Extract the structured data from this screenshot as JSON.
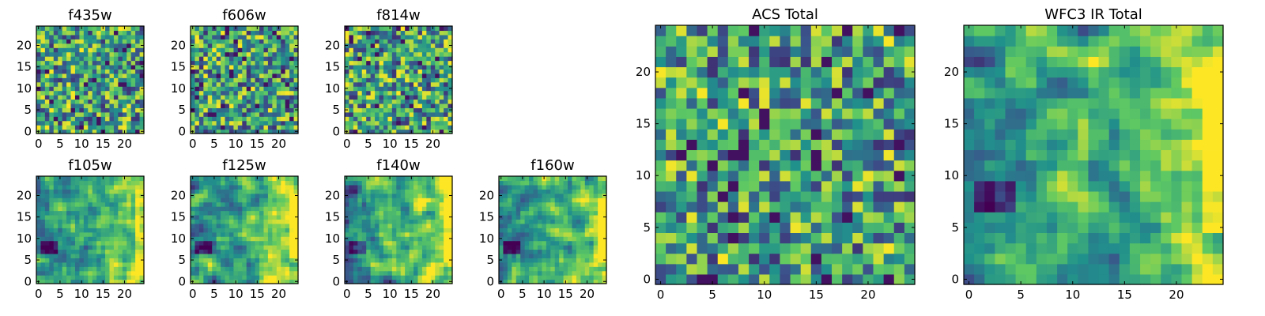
{
  "figure": {
    "colormap": "viridis",
    "colormap_stops": [
      "#440154",
      "#3b528b",
      "#21918c",
      "#5ec962",
      "#fde725"
    ]
  },
  "chart_data": [
    {
      "type": "heatmap",
      "title": "f435w",
      "grid_size": 25,
      "xlim": [
        0,
        24
      ],
      "ylim": [
        0,
        24
      ],
      "xticks": [
        0,
        5,
        10,
        15,
        20
      ],
      "yticks": [
        0,
        5,
        10,
        15,
        20
      ],
      "texture": "noisy",
      "values": []
    },
    {
      "type": "heatmap",
      "title": "f606w",
      "grid_size": 25,
      "xlim": [
        0,
        24
      ],
      "ylim": [
        0,
        24
      ],
      "xticks": [
        0,
        5,
        10,
        15,
        20
      ],
      "yticks": [
        0,
        5,
        10,
        15,
        20
      ],
      "texture": "noisy",
      "values": []
    },
    {
      "type": "heatmap",
      "title": "f814w",
      "grid_size": 25,
      "xlim": [
        0,
        24
      ],
      "ylim": [
        0,
        24
      ],
      "xticks": [
        0,
        5,
        10,
        15,
        20
      ],
      "yticks": [
        0,
        5,
        10,
        15,
        20
      ],
      "texture": "noisy",
      "values": []
    },
    {
      "type": "heatmap",
      "title": "f105w",
      "grid_size": 25,
      "xlim": [
        0,
        24
      ],
      "ylim": [
        0,
        24
      ],
      "xticks": [
        0,
        5,
        10,
        15,
        20
      ],
      "yticks": [
        0,
        5,
        10,
        15,
        20
      ],
      "texture": "smooth",
      "values": []
    },
    {
      "type": "heatmap",
      "title": "f125w",
      "grid_size": 25,
      "xlim": [
        0,
        24
      ],
      "ylim": [
        0,
        24
      ],
      "xticks": [
        0,
        5,
        10,
        15,
        20
      ],
      "yticks": [
        0,
        5,
        10,
        15,
        20
      ],
      "texture": "smooth",
      "values": []
    },
    {
      "type": "heatmap",
      "title": "f140w",
      "grid_size": 25,
      "xlim": [
        0,
        24
      ],
      "ylim": [
        0,
        24
      ],
      "xticks": [
        0,
        5,
        10,
        15,
        20
      ],
      "yticks": [
        0,
        5,
        10,
        15,
        20
      ],
      "texture": "smooth",
      "values": []
    },
    {
      "type": "heatmap",
      "title": "f160w",
      "grid_size": 25,
      "xlim": [
        0,
        24
      ],
      "ylim": [
        0,
        24
      ],
      "xticks": [
        0,
        5,
        10,
        15,
        20
      ],
      "yticks": [
        0,
        5,
        10,
        15,
        20
      ],
      "texture": "smooth",
      "values": []
    },
    {
      "type": "heatmap",
      "title": "ACS Total",
      "grid_size": 25,
      "xlim": [
        0,
        24
      ],
      "ylim": [
        0,
        24
      ],
      "xticks": [
        0,
        5,
        10,
        15,
        20
      ],
      "yticks": [
        0,
        5,
        10,
        15,
        20
      ],
      "texture": "noisy",
      "values": []
    },
    {
      "type": "heatmap",
      "title": "WFC3 IR Total",
      "grid_size": 25,
      "xlim": [
        0,
        24
      ],
      "ylim": [
        0,
        24
      ],
      "xticks": [
        0,
        5,
        10,
        15,
        20
      ],
      "yticks": [
        0,
        5,
        10,
        15,
        20
      ],
      "texture": "smooth",
      "values": []
    }
  ]
}
